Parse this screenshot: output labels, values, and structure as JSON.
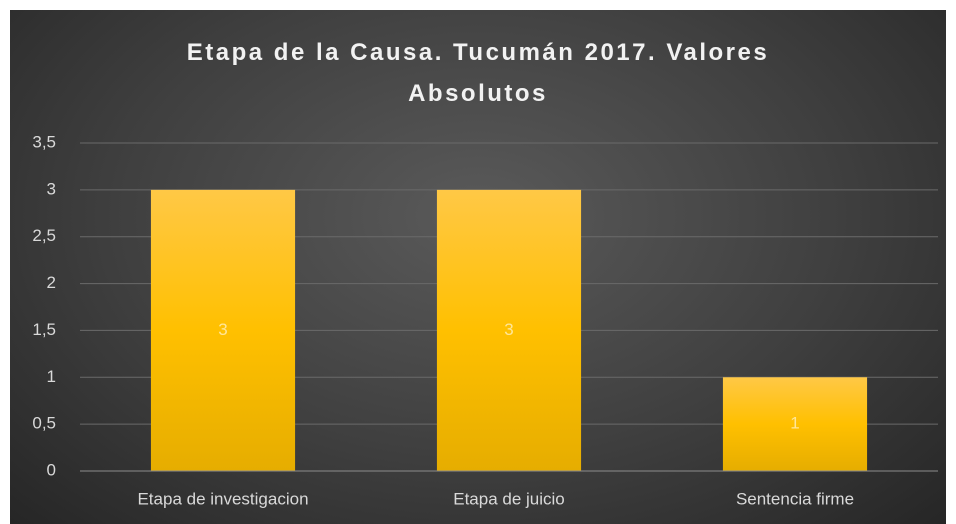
{
  "chart_data": {
    "type": "bar",
    "title": "Etapa de la Causa. Tucumán 2017. Valores Absolutos",
    "categories": [
      "Etapa de investigacion",
      "Etapa de juicio",
      "Sentencia firme"
    ],
    "values": [
      3,
      3,
      1
    ],
    "color": "#ffc000",
    "ylim": [
      0,
      3.5
    ],
    "yticks": [
      0,
      {
        "value": 0.5,
        "label": "0,5"
      },
      1,
      {
        "value": 1.5,
        "label": "1,5"
      },
      2,
      {
        "value": 2.5,
        "label": "2,5"
      },
      3,
      {
        "value": 3.5,
        "label": "3,5"
      }
    ],
    "grid": true
  }
}
